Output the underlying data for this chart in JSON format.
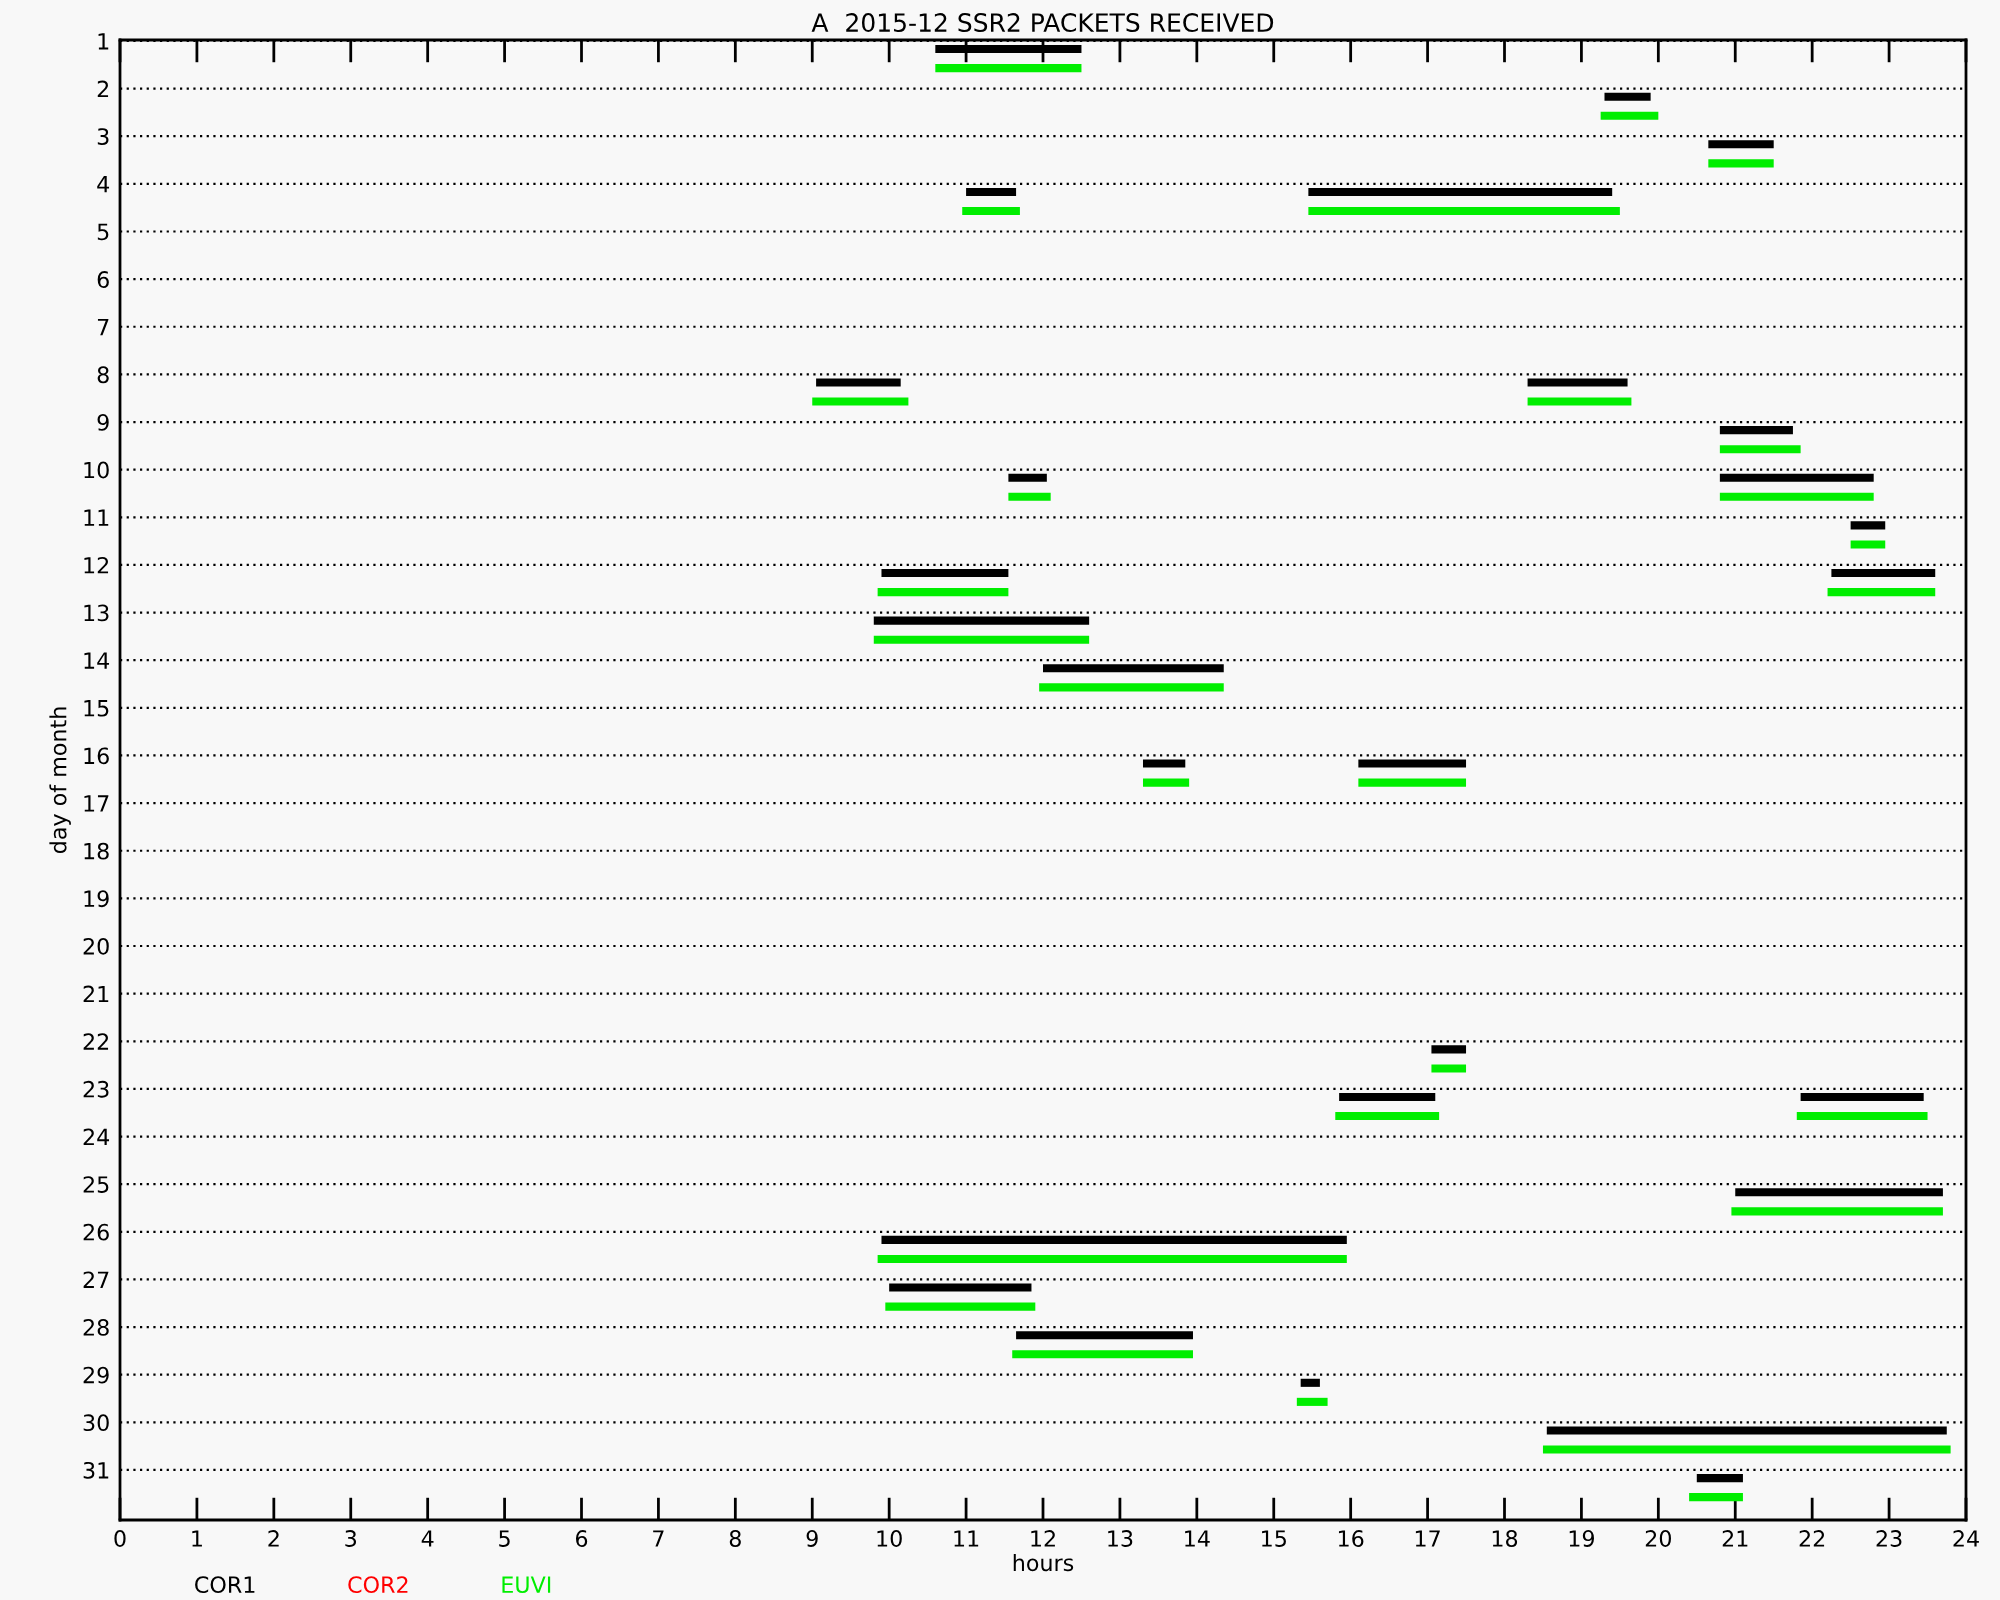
{
  "chart_data": {
    "type": "bar",
    "orientation": "horizontal",
    "title": "A  2015-12 SSR2 PACKETS RECEIVED",
    "xlabel": "hours",
    "ylabel": "day of month",
    "categories": [
      "1",
      "2",
      "3",
      "4",
      "5",
      "6",
      "7",
      "8",
      "9",
      "10",
      "11",
      "12",
      "13",
      "14",
      "15",
      "16",
      "17",
      "18",
      "19",
      "20",
      "21",
      "22",
      "23",
      "24",
      "25",
      "26",
      "27",
      "28",
      "29",
      "30",
      "31"
    ],
    "xlim": [
      0,
      24
    ],
    "xticks": [
      0,
      1,
      2,
      3,
      4,
      5,
      6,
      7,
      8,
      9,
      10,
      11,
      12,
      13,
      14,
      15,
      16,
      17,
      18,
      19,
      20,
      21,
      22,
      23,
      24
    ],
    "grid": "y",
    "legend": "bottom left",
    "series": [
      {
        "name": "COR1",
        "color": "#000000",
        "base": [
          10.6,
          19.3,
          20.65,
          11.0,
          null,
          null,
          null,
          9.05,
          20.8,
          11.55,
          22.5,
          9.9,
          9.8,
          12.0,
          null,
          13.3,
          null,
          null,
          null,
          null,
          null,
          17.05,
          15.85,
          null,
          21.0,
          9.9,
          10.0,
          11.65,
          15.35,
          18.55,
          20.5
        ],
        "values": [
          1.9,
          0.6,
          0.85,
          0.65,
          null,
          null,
          null,
          1.1,
          0.95,
          0.5,
          0.45,
          1.65,
          2.8,
          2.35,
          null,
          0.55,
          null,
          null,
          null,
          null,
          null,
          0.45,
          1.25,
          null,
          2.7,
          6.05,
          1.85,
          2.3,
          0.25,
          5.2,
          0.6
        ]
      },
      {
        "color": "#000000",
        "base": [
          null,
          null,
          null,
          15.45,
          null,
          null,
          null,
          18.3,
          null,
          20.8,
          null,
          22.25,
          null,
          null,
          null,
          16.1,
          null,
          null,
          null,
          null,
          null,
          null,
          21.85,
          null,
          null,
          null,
          null,
          null,
          null,
          null,
          null
        ],
        "values": [
          null,
          null,
          null,
          3.95,
          null,
          null,
          null,
          1.3,
          null,
          2.0,
          null,
          1.35,
          null,
          null,
          null,
          1.4,
          null,
          null,
          null,
          null,
          null,
          null,
          1.6,
          null,
          null,
          null,
          null,
          null,
          null,
          null,
          null
        ]
      },
      {
        "name": "COR2",
        "color": "#ff0000",
        "base": [
          null,
          null,
          null,
          null,
          null,
          null,
          null,
          null,
          null,
          null,
          null,
          null,
          null,
          null,
          null,
          null,
          null,
          null,
          null,
          null,
          null,
          null,
          null,
          null,
          null,
          null,
          null,
          null,
          null,
          null,
          null
        ],
        "values": [
          null,
          null,
          null,
          null,
          null,
          null,
          null,
          null,
          null,
          null,
          null,
          null,
          null,
          null,
          null,
          null,
          null,
          null,
          null,
          null,
          null,
          null,
          null,
          null,
          null,
          null,
          null,
          null,
          null,
          null,
          null
        ]
      },
      {
        "name": "EUVI",
        "color": "#00ee00",
        "base": [
          10.6,
          19.25,
          20.65,
          10.95,
          null,
          null,
          null,
          9.0,
          20.8,
          11.55,
          22.5,
          9.85,
          9.8,
          11.95,
          null,
          13.3,
          null,
          null,
          null,
          null,
          null,
          17.05,
          15.8,
          null,
          20.95,
          9.85,
          9.95,
          11.6,
          15.3,
          18.5,
          20.4
        ],
        "values": [
          1.9,
          0.75,
          0.85,
          0.75,
          null,
          null,
          null,
          1.25,
          1.05,
          0.55,
          0.45,
          1.7,
          2.8,
          2.4,
          null,
          0.6,
          null,
          null,
          null,
          null,
          null,
          0.45,
          1.35,
          null,
          2.75,
          6.1,
          1.95,
          2.35,
          0.4,
          5.3,
          0.7
        ]
      },
      {
        "color": "#00ee00",
        "base": [
          null,
          null,
          null,
          15.45,
          null,
          null,
          null,
          18.3,
          null,
          20.8,
          null,
          22.2,
          null,
          null,
          null,
          16.1,
          null,
          null,
          null,
          null,
          null,
          null,
          21.8,
          null,
          null,
          null,
          null,
          null,
          null,
          null,
          null
        ],
        "values": [
          null,
          null,
          null,
          4.05,
          null,
          null,
          null,
          1.35,
          null,
          2.0,
          null,
          1.4,
          null,
          null,
          null,
          1.4,
          null,
          null,
          null,
          null,
          null,
          null,
          1.7,
          null,
          null,
          null,
          null,
          null,
          null,
          null,
          null
        ]
      }
    ]
  }
}
